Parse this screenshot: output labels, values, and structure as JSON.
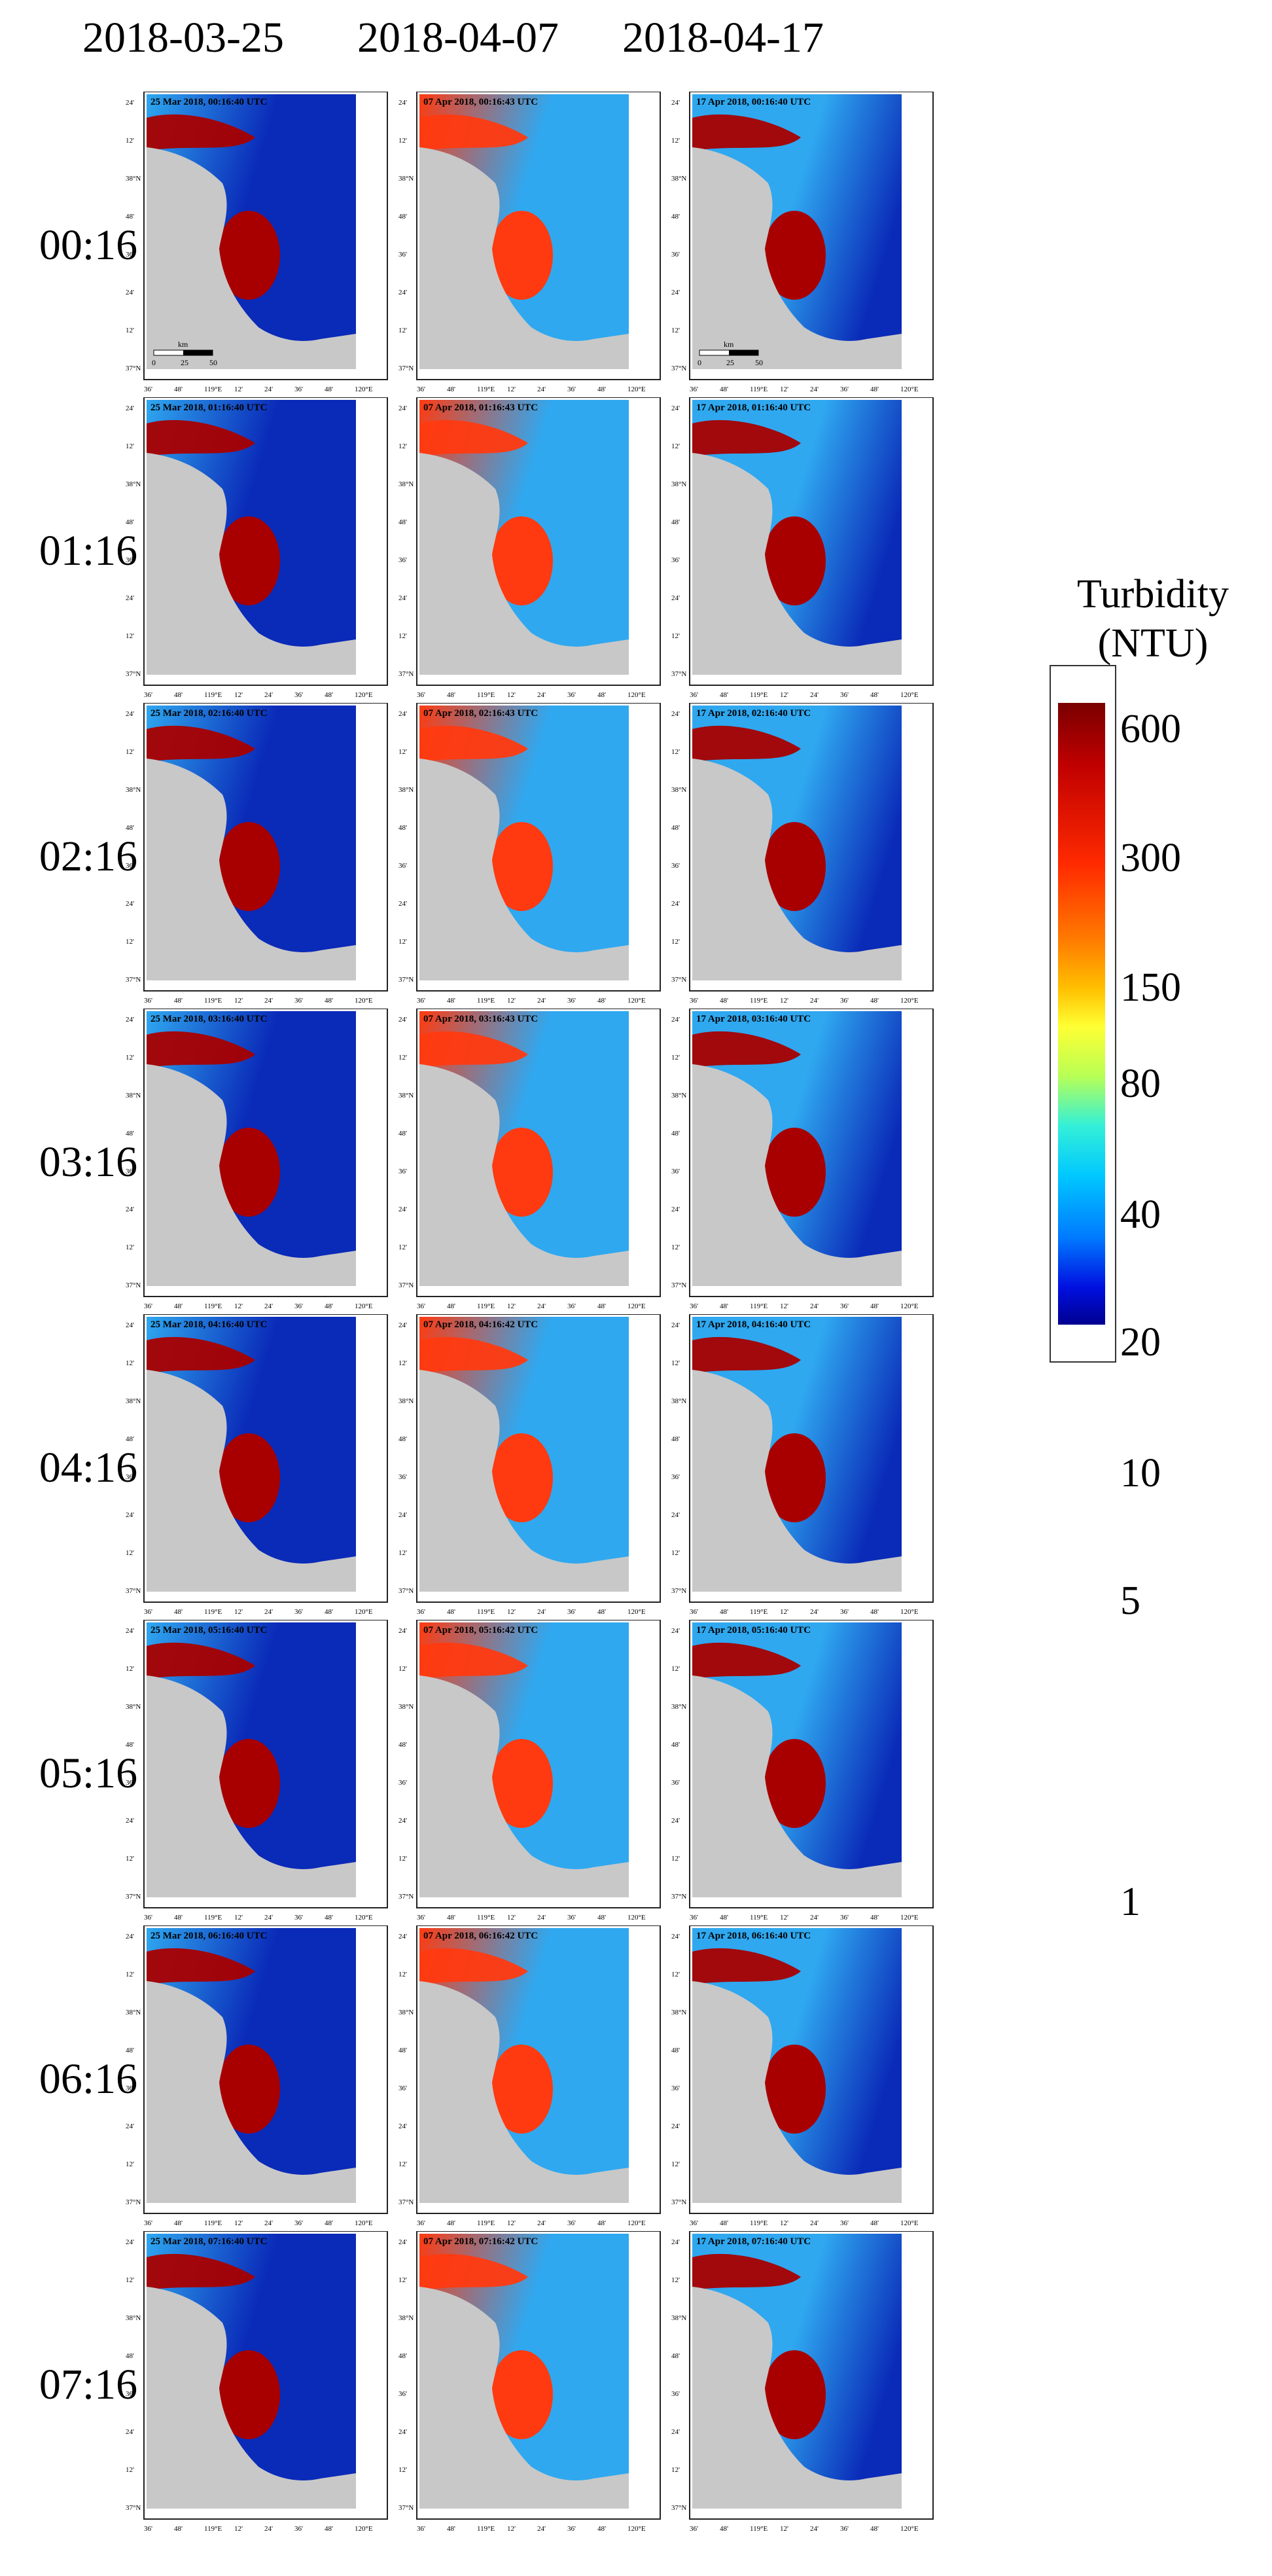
{
  "columns": [
    "2018-03-25",
    "2018-04-07",
    "2018-04-17"
  ],
  "rows": [
    "00:16",
    "01:16",
    "02:16",
    "03:16",
    "04:16",
    "05:16",
    "06:16",
    "07:16"
  ],
  "panel_titles": [
    [
      "25 Mar 2018, 00:16:40 UTC",
      "07 Apr 2018, 00:16:43 UTC",
      "17 Apr 2018, 00:16:40 UTC"
    ],
    [
      "25 Mar 2018, 01:16:40 UTC",
      "07 Apr 2018, 01:16:43 UTC",
      "17 Apr 2018, 01:16:40 UTC"
    ],
    [
      "25 Mar 2018, 02:16:40 UTC",
      "07 Apr 2018, 02:16:43 UTC",
      "17 Apr 2018, 02:16:40 UTC"
    ],
    [
      "25 Mar 2018, 03:16:40 UTC",
      "07 Apr 2018, 03:16:43 UTC",
      "17 Apr 2018, 03:16:40 UTC"
    ],
    [
      "25 Mar 2018, 04:16:40 UTC",
      "07 Apr 2018, 04:16:42 UTC",
      "17 Apr 2018, 04:16:40 UTC"
    ],
    [
      "25 Mar 2018, 05:16:40 UTC",
      "07 Apr 2018, 05:16:42 UTC",
      "17 Apr 2018, 05:16:40 UTC"
    ],
    [
      "25 Mar 2018, 06:16:40 UTC",
      "07 Apr 2018, 06:16:42 UTC",
      "17 Apr 2018, 06:16:40 UTC"
    ],
    [
      "25 Mar 2018, 07:16:40 UTC",
      "07 Apr 2018, 07:16:42 UTC",
      "17 Apr 2018, 07:16:40 UTC"
    ]
  ],
  "map_axes": {
    "lat_labels": [
      "24'",
      "12'",
      "38°N",
      "48'",
      "36'",
      "24'",
      "12'",
      "37°N"
    ],
    "lon_labels": [
      "36'",
      "48'",
      "119°E",
      "12'",
      "24'",
      "36'",
      "48'",
      "120°E"
    ]
  },
  "scale_bar": {
    "unit": "km",
    "ticks": [
      "0",
      "25",
      "50"
    ]
  },
  "colorbar": {
    "title_line1": "Turbidity",
    "title_line2": "(NTU)",
    "ticks": [
      "600",
      "300",
      "150",
      "80",
      "40",
      "20",
      "10",
      "5",
      "1"
    ]
  },
  "colors": {
    "land": "#c8c8c8",
    "low": "#0a2ab8",
    "mid": "#2fa8f0",
    "high": "#ff3a10",
    "very_high": "#a80000"
  }
}
